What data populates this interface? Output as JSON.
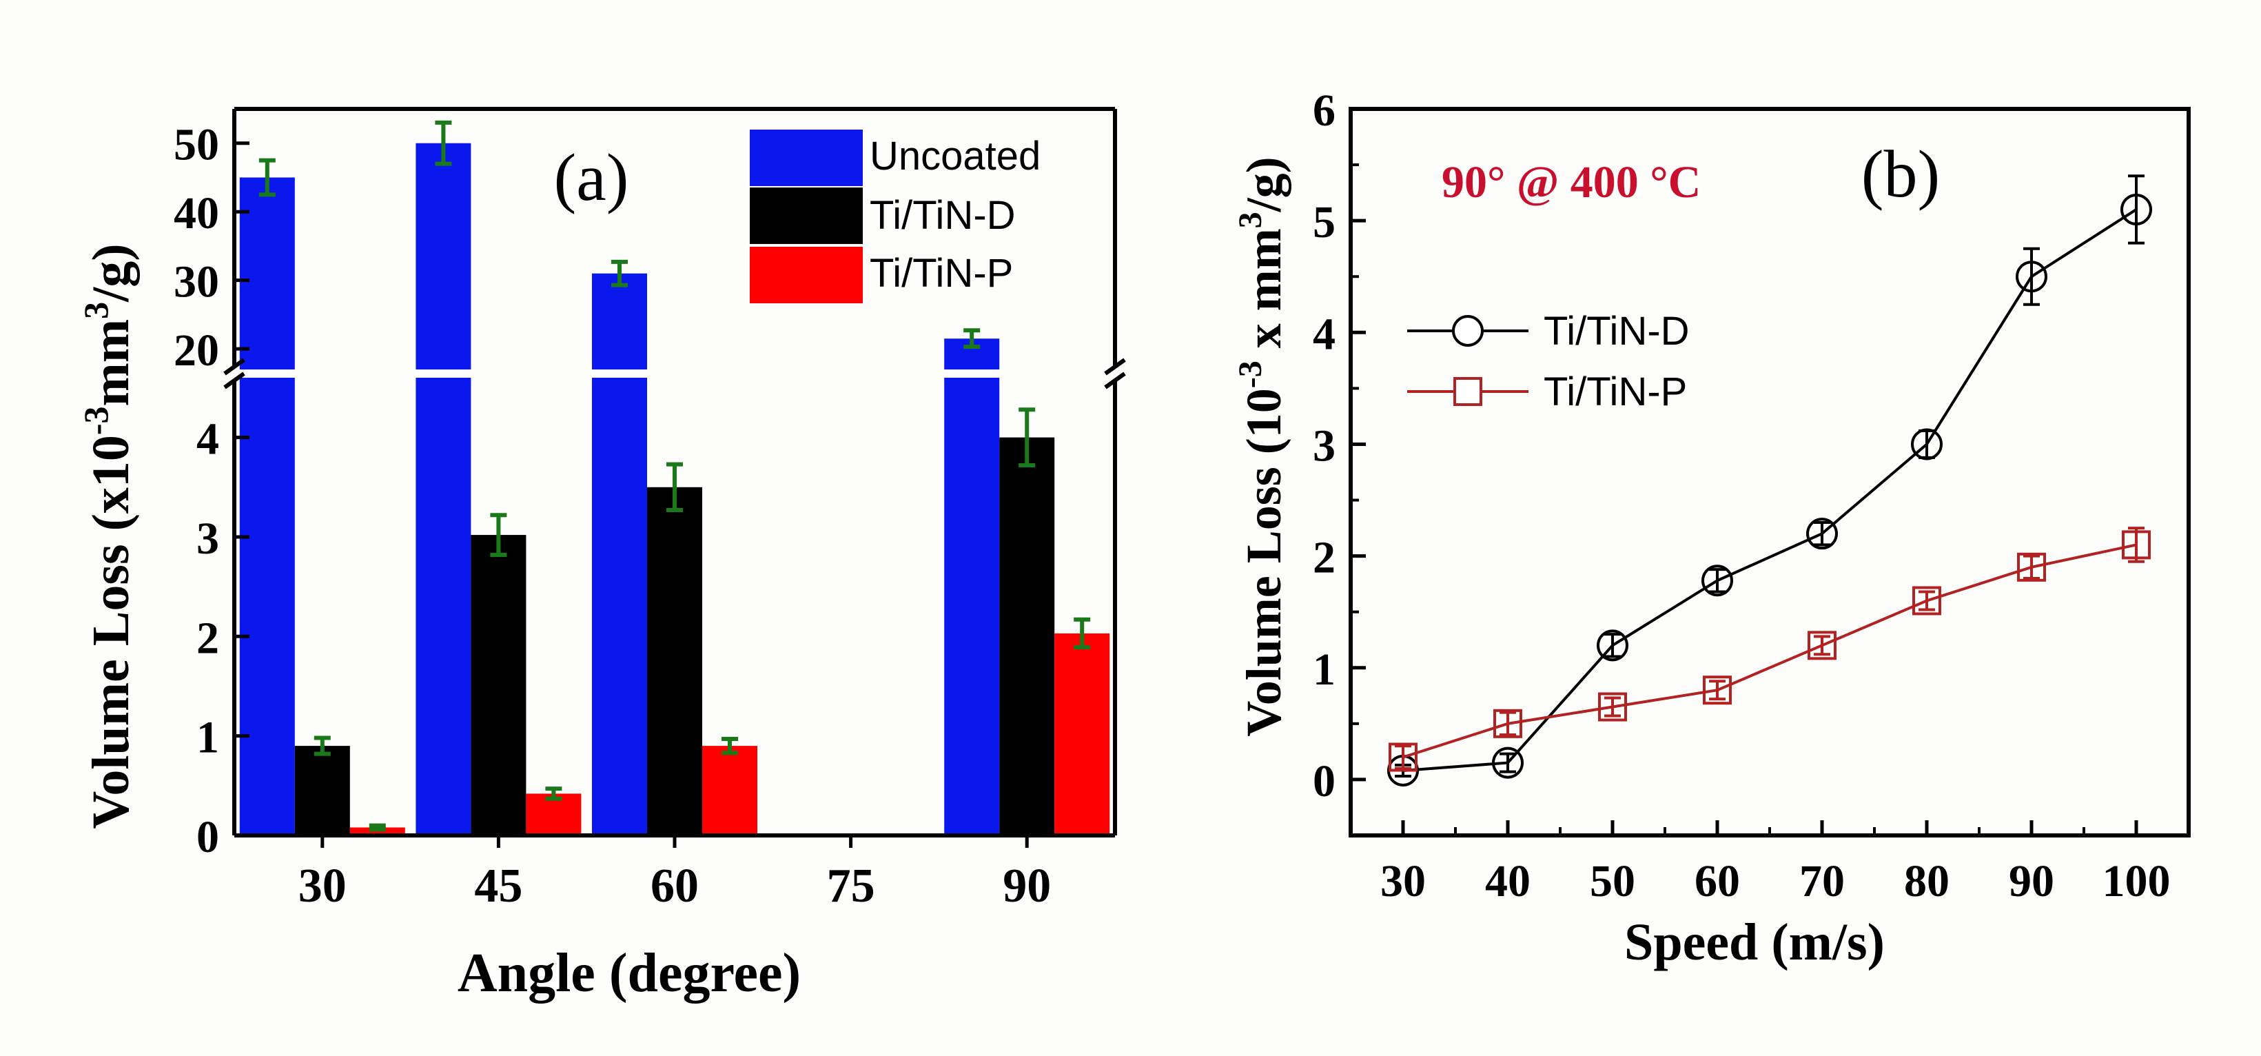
{
  "chart_data": [
    {
      "panel": "a",
      "type": "bar",
      "panel_label": "(a)",
      "xlabel": "Angle (degree)",
      "ylabel_main": "Volume Loss (x10",
      "ylabel_exp": "-3",
      "ylabel_unit": "mm",
      "ylabel_unit_exp": "3",
      "ylabel_tail": "/g)",
      "categories": [
        "30",
        "45",
        "60",
        "75",
        "90"
      ],
      "axis_break": {
        "lower_range": [
          0,
          4.6
        ],
        "upper_range": [
          17,
          55
        ]
      },
      "yticks_lower": [
        "0",
        "1",
        "2",
        "3",
        "4"
      ],
      "yticks_upper": [
        "20",
        "30",
        "40",
        "50"
      ],
      "series": [
        {
          "name": "Uncoated",
          "color": "#0a18ee",
          "values": [
            45,
            50,
            31,
            null,
            21.5
          ],
          "errors": [
            2.5,
            3,
            1.7,
            null,
            1.2
          ]
        },
        {
          "name": "Ti/TiN-D",
          "color": "#000000",
          "values": [
            0.9,
            3.02,
            3.5,
            null,
            4.0
          ],
          "errors": [
            0.08,
            0.2,
            0.23,
            null,
            0.28
          ]
        },
        {
          "name": "Ti/TiN-P",
          "color": "#ff0000",
          "values": [
            0.08,
            0.42,
            0.9,
            null,
            2.03
          ],
          "errors": [
            0.02,
            0.05,
            0.07,
            null,
            0.14
          ]
        }
      ],
      "error_bar_color": "#1a7a1a",
      "legend_position": "top-right"
    },
    {
      "panel": "b",
      "type": "line",
      "panel_label": "(b)",
      "annotation": "90° @ 400 °C",
      "annotation_color": "#c8102e",
      "xlabel": "Speed (m/s)",
      "ylabel_main": "Volume Loss (10",
      "ylabel_exp": "-3",
      "ylabel_mid": " x mm",
      "ylabel_unit_exp": "3",
      "ylabel_tail": "/g)",
      "x": [
        30,
        40,
        50,
        60,
        70,
        80,
        90,
        100
      ],
      "xticks": [
        "30",
        "40",
        "50",
        "60",
        "70",
        "80",
        "90",
        "100"
      ],
      "yticks": [
        "0",
        "1",
        "2",
        "3",
        "4",
        "5",
        "6"
      ],
      "xlim": [
        25,
        105
      ],
      "ylim": [
        -0.5,
        6
      ],
      "series": [
        {
          "name": "Ti/TiN-D",
          "color": "#000000",
          "marker": "circle",
          "values": [
            0.08,
            0.15,
            1.2,
            1.78,
            2.2,
            3.0,
            4.5,
            5.1
          ],
          "errors": [
            0.05,
            0.08,
            0.1,
            0.1,
            0.1,
            0.12,
            0.25,
            0.3
          ]
        },
        {
          "name": "Ti/TiN-P",
          "color": "#b22222",
          "marker": "square",
          "values": [
            0.2,
            0.5,
            0.65,
            0.8,
            1.2,
            1.6,
            1.9,
            2.1
          ],
          "errors": [
            0.1,
            0.1,
            0.08,
            0.08,
            0.08,
            0.08,
            0.1,
            0.15
          ]
        }
      ],
      "legend_position": "upper-left"
    }
  ]
}
